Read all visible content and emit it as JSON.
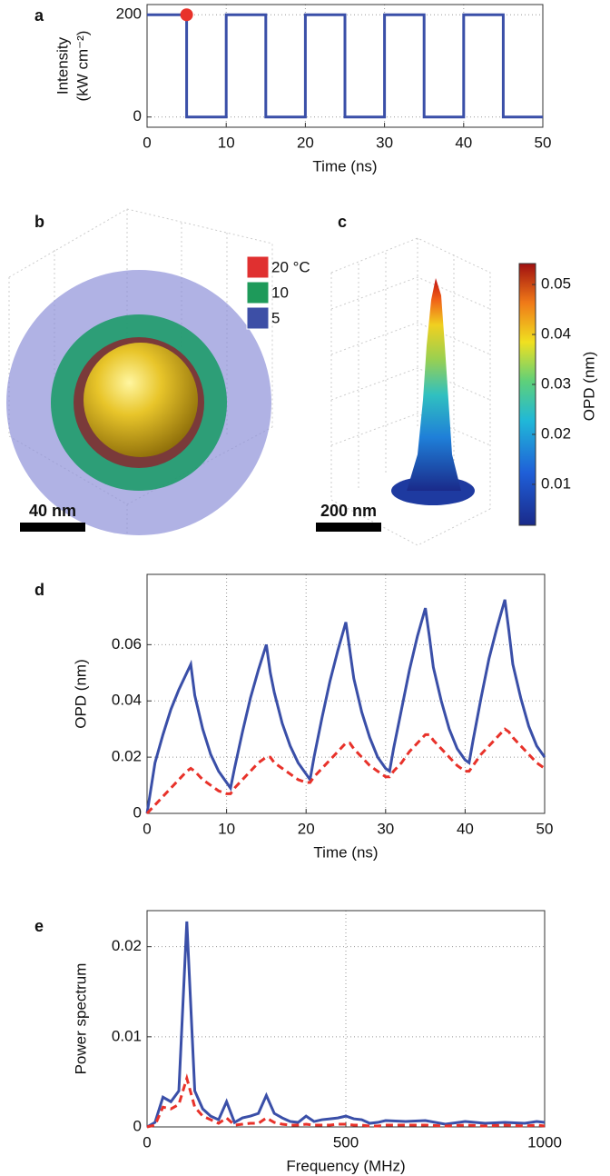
{
  "chart_data": [
    {
      "type": "line",
      "panel_label": "a",
      "xlabel": "Time (ns)",
      "ylabel": [
        "Intensity",
        "(kW cm⁻²)"
      ],
      "xlim": [
        0,
        50
      ],
      "ylim": [
        -20,
        220
      ],
      "xticks": [
        0,
        10,
        20,
        30,
        40,
        50
      ],
      "yticks": [
        0,
        200
      ],
      "grid": true,
      "x": [
        0,
        5,
        5,
        10,
        10,
        15,
        15,
        20,
        20,
        25,
        25,
        30,
        30,
        35,
        35,
        40,
        40,
        45,
        45,
        50
      ],
      "series": [
        {
          "color": "#3a4fa8",
          "linestyle": "solid",
          "values": [
            200,
            200,
            0,
            0,
            200,
            200,
            0,
            0,
            200,
            200,
            0,
            0,
            200,
            200,
            0,
            0,
            200,
            200,
            0,
            0
          ]
        }
      ],
      "highlight": {
        "x": 5,
        "y": 200,
        "color": "#e8322a"
      }
    },
    {
      "type": "line",
      "panel_label": "d",
      "xlabel": "Time (ns)",
      "ylabel": [
        "OPD (nm)"
      ],
      "xlim": [
        0,
        50
      ],
      "ylim": [
        0,
        0.085
      ],
      "xticks": [
        0,
        10,
        20,
        30,
        40,
        50
      ],
      "yticks": [
        0,
        0.02,
        0.04,
        0.06
      ],
      "grid": true,
      "x": [
        0,
        1,
        2,
        3,
        4,
        5,
        5.5,
        6,
        7,
        8,
        9,
        10,
        10.5,
        11,
        12,
        13,
        14,
        15,
        15.5,
        16,
        17,
        18,
        19,
        20,
        20.5,
        21,
        22,
        23,
        24,
        25,
        25.5,
        26,
        27,
        28,
        29,
        30,
        30.5,
        31,
        32,
        33,
        34,
        35,
        35.5,
        36,
        37,
        38,
        39,
        40,
        40.5,
        41,
        42,
        43,
        44,
        45,
        45.5,
        46,
        47,
        48,
        49,
        50
      ],
      "series": [
        {
          "color": "#3a4fa8",
          "linestyle": "solid",
          "values": [
            0,
            0.018,
            0.028,
            0.037,
            0.044,
            0.05,
            0.053,
            0.042,
            0.03,
            0.021,
            0.015,
            0.011,
            0.009,
            0.016,
            0.029,
            0.041,
            0.051,
            0.06,
            0.05,
            0.043,
            0.032,
            0.024,
            0.018,
            0.014,
            0.012,
            0.02,
            0.034,
            0.047,
            0.058,
            0.068,
            0.058,
            0.048,
            0.036,
            0.027,
            0.02,
            0.016,
            0.015,
            0.023,
            0.037,
            0.051,
            0.063,
            0.073,
            0.063,
            0.052,
            0.04,
            0.03,
            0.023,
            0.019,
            0.018,
            0.026,
            0.041,
            0.055,
            0.066,
            0.076,
            0.065,
            0.053,
            0.041,
            0.031,
            0.024,
            0.02
          ]
        },
        {
          "color": "#e8322a",
          "linestyle": "dashed",
          "values": [
            0,
            0.003,
            0.006,
            0.009,
            0.012,
            0.015,
            0.016,
            0.015,
            0.012,
            0.01,
            0.008,
            0.007,
            0.007,
            0.009,
            0.012,
            0.015,
            0.018,
            0.02,
            0.02,
            0.018,
            0.016,
            0.014,
            0.012,
            0.011,
            0.011,
            0.013,
            0.016,
            0.019,
            0.022,
            0.025,
            0.025,
            0.023,
            0.02,
            0.017,
            0.015,
            0.013,
            0.013,
            0.015,
            0.018,
            0.022,
            0.025,
            0.028,
            0.028,
            0.026,
            0.023,
            0.02,
            0.017,
            0.015,
            0.015,
            0.017,
            0.021,
            0.024,
            0.027,
            0.03,
            0.029,
            0.027,
            0.024,
            0.021,
            0.018,
            0.016
          ]
        }
      ]
    },
    {
      "type": "line",
      "panel_label": "e",
      "xlabel": "Frequency (MHz)",
      "ylabel": [
        "Power spectrum"
      ],
      "xlim": [
        0,
        1000
      ],
      "ylim": [
        0,
        0.024
      ],
      "xticks": [
        0,
        500,
        1000
      ],
      "yticks": [
        0,
        0.01,
        0.02
      ],
      "grid": true,
      "x": [
        0,
        20,
        40,
        60,
        80,
        100,
        120,
        140,
        160,
        180,
        200,
        220,
        240,
        260,
        280,
        300,
        320,
        340,
        360,
        380,
        400,
        420,
        440,
        460,
        480,
        500,
        520,
        540,
        560,
        580,
        600,
        650,
        700,
        750,
        800,
        850,
        900,
        950,
        980,
        1000
      ],
      "series": [
        {
          "color": "#3a4fa8",
          "linestyle": "solid",
          "values": [
            0,
            0.0005,
            0.0033,
            0.0028,
            0.004,
            0.0228,
            0.004,
            0.002,
            0.0012,
            0.0008,
            0.0028,
            0.0005,
            0.001,
            0.0012,
            0.0015,
            0.0035,
            0.0015,
            0.001,
            0.0006,
            0.0005,
            0.0012,
            0.0006,
            0.0008,
            0.0009,
            0.001,
            0.0012,
            0.0009,
            0.0008,
            0.0004,
            0.0005,
            0.0007,
            0.0006,
            0.0007,
            0.0003,
            0.0006,
            0.0004,
            0.0005,
            0.0004,
            0.0006,
            0.0005
          ]
        },
        {
          "color": "#e8322a",
          "linestyle": "dashed",
          "values": [
            0,
            0.0002,
            0.0022,
            0.002,
            0.0025,
            0.0054,
            0.0022,
            0.0012,
            0.0008,
            0.0004,
            0.001,
            0.0002,
            0.0003,
            0.0004,
            0.0004,
            0.001,
            0.0005,
            0.0003,
            0.0002,
            0.0002,
            0.0003,
            0.0002,
            0.0002,
            0.0002,
            0.0003,
            0.0003,
            0.0002,
            0.0002,
            0.0001,
            0.0001,
            0.0002,
            0.0002,
            0.0002,
            0.0001,
            0.0002,
            0.0001,
            0.0002,
            0.0001,
            0.0002,
            0.0001
          ]
        }
      ]
    }
  ],
  "panel_b": {
    "label": "b",
    "scale_bar": "40 nm",
    "legend": [
      {
        "label": "20 °C",
        "color": "#e03030"
      },
      {
        "label": "10",
        "color": "#1e9a5a"
      },
      {
        "label": "5",
        "color": "#3d4fa6"
      }
    ]
  },
  "panel_c": {
    "label": "c",
    "scale_bar": "200 nm",
    "colorbar_label": "OPD (nm)",
    "clim": [
      0.0018,
      0.0542
    ],
    "colorbar_ticks": [
      0.01,
      0.02,
      0.03,
      0.04,
      0.05
    ]
  }
}
